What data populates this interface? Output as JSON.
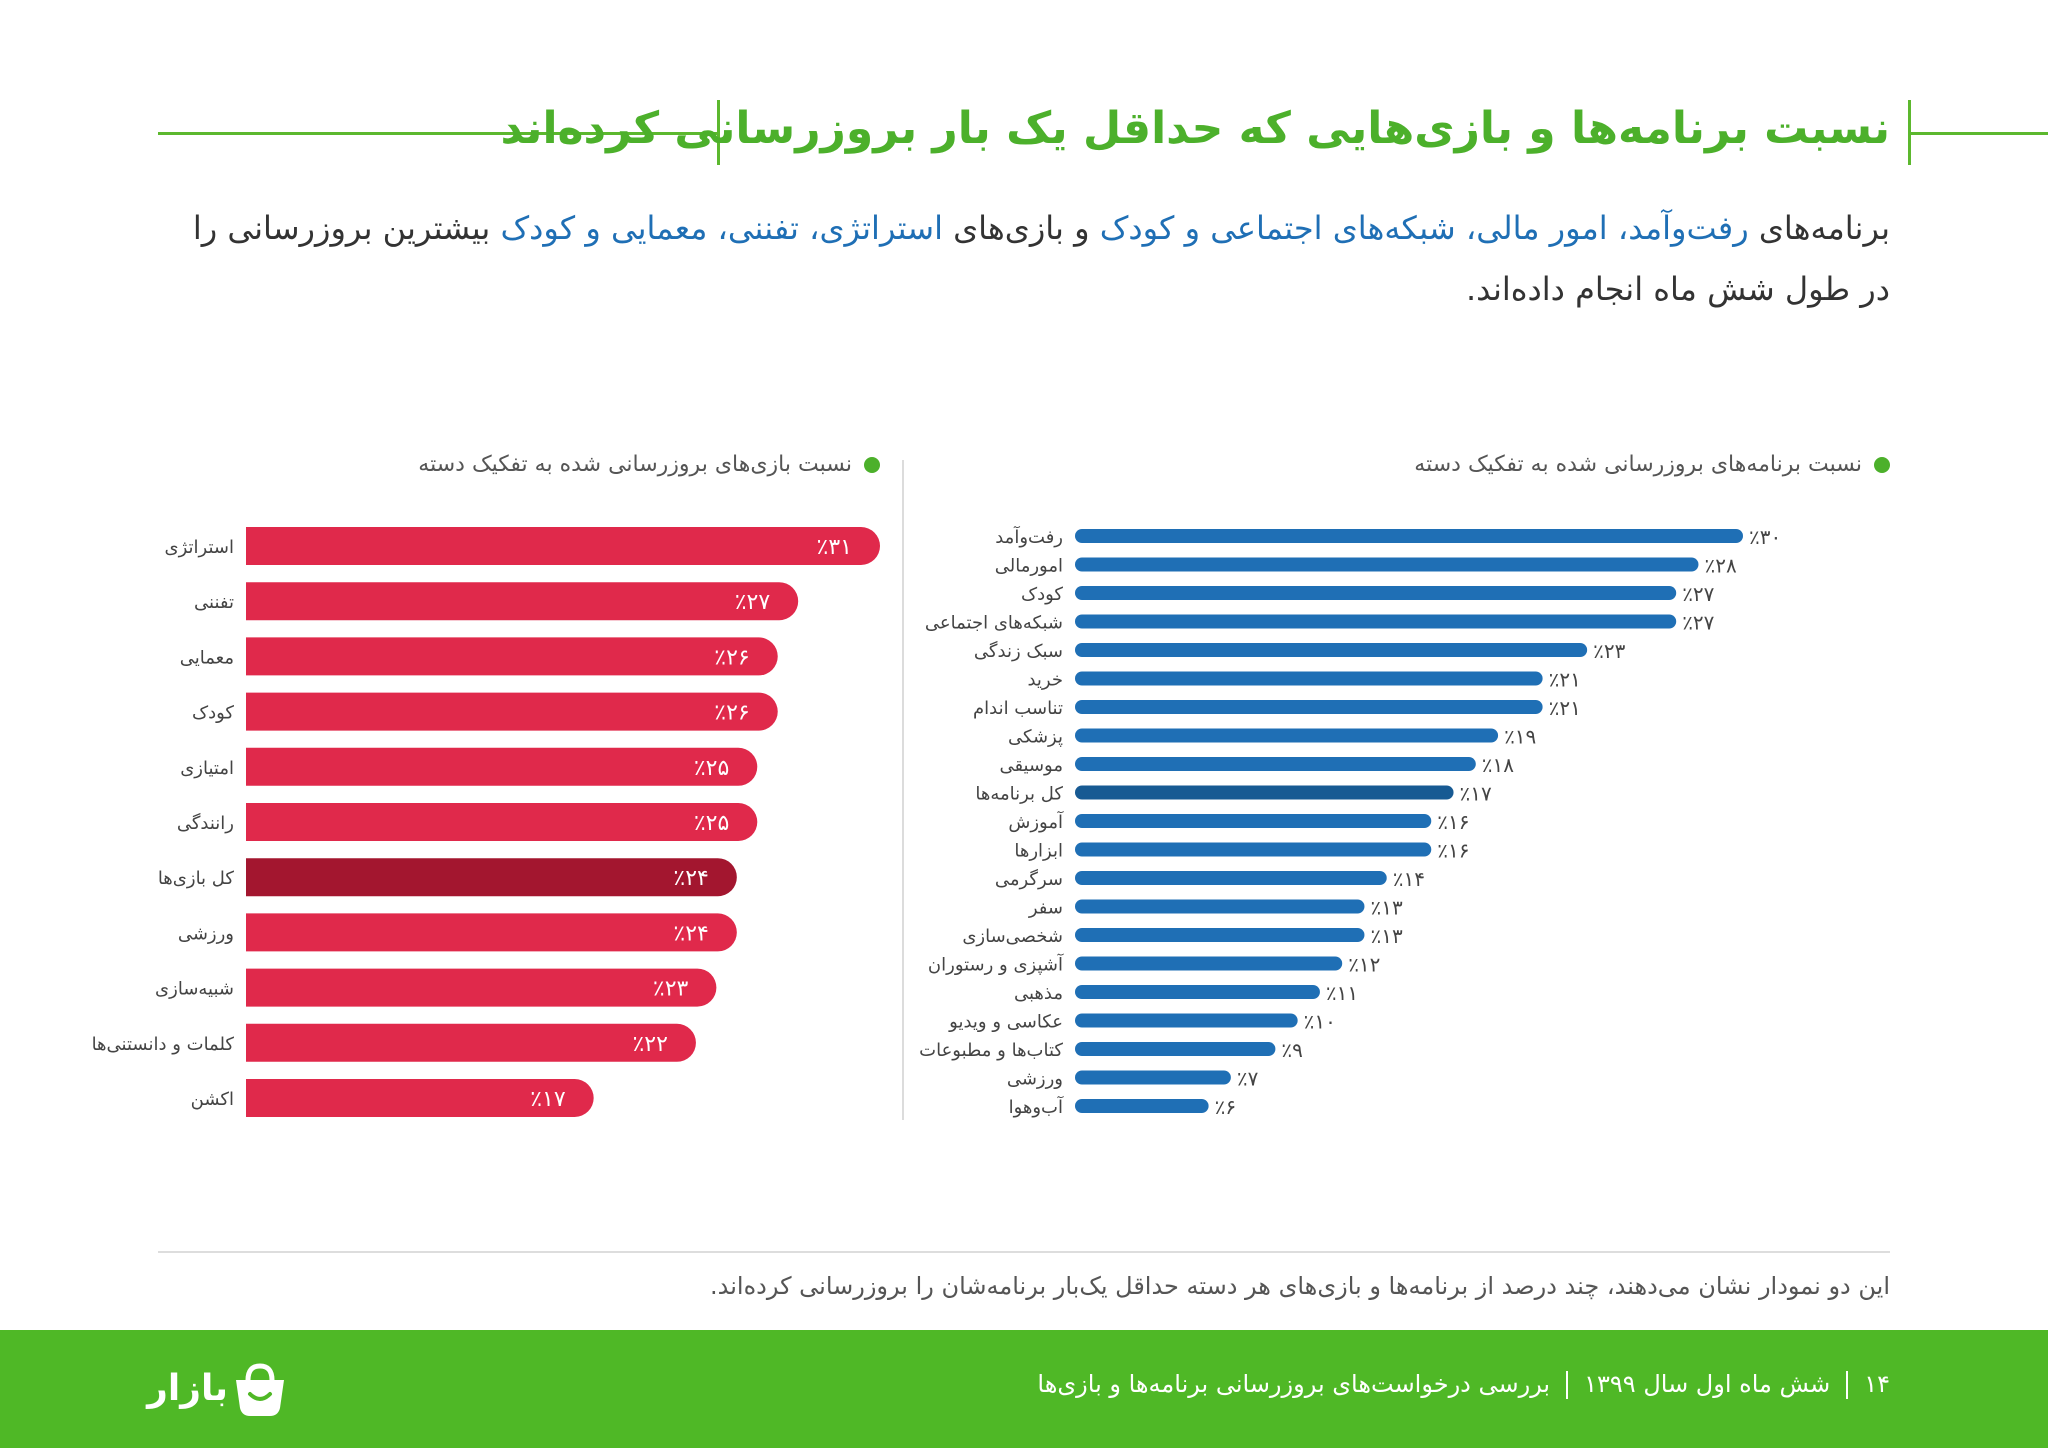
{
  "title": "نسبت برنامه‌ها و بازی‌هایی که حداقل یک بار بروزرسانی کرده‌اند",
  "intro": {
    "p1": "برنامه‌های ",
    "h1": "رفت‌وآمد، امور مالی، شبکه‌های اجتماعی و کودک",
    "p2": " و بازی‌های ",
    "h2": "استراتژی، تفننی، معمایی و کودک",
    "p3": " بیشترین بروزرسانی را در طول شش ماه انجام داده‌اند."
  },
  "colors": {
    "green": "#4cb02b",
    "app_bar": "#1f6fb5",
    "app_bar_total": "#175a93",
    "game_bar": "#e0294b",
    "game_bar_total": "#a3162f"
  },
  "chart_data": [
    {
      "type": "bar",
      "orientation": "horizontal",
      "title": "نسبت برنامه‌های بروزرسانی شده به تفکیک دسته",
      "categories": [
        "رفت‌وآمد",
        "امورمالی",
        "کودک",
        "شبکه‌های اجتماعی",
        "سبک زندگی",
        "خرید",
        "تناسب اندام",
        "پزشکی",
        "موسیقی",
        "کل برنامه‌ها",
        "آموزش",
        "ابزارها",
        "سرگرمی",
        "سفر",
        "شخصی‌سازی",
        "آشپزی و رستوران",
        "مذهبی",
        "عکاسی و ویدیو",
        "کتاب‌ها و مطبوعات",
        "ورزشی",
        "آب‌وهوا"
      ],
      "values": [
        30,
        28,
        27,
        27,
        23,
        21,
        21,
        19,
        18,
        17,
        16,
        16,
        14,
        13,
        13,
        12,
        11,
        10,
        9,
        7,
        6
      ],
      "labels": [
        "٪۳۰",
        "٪۲۸",
        "٪۲۷",
        "٪۲۷",
        "٪۲۳",
        "٪۲۱",
        "٪۲۱",
        "٪۱۹",
        "٪۱۸",
        "٪۱۷",
        "٪۱۶",
        "٪۱۶",
        "٪۱۴",
        "٪۱۳",
        "٪۱۳",
        "٪۱۲",
        "٪۱۱",
        "٪۱۰",
        "٪۹",
        "٪۷",
        "٪۶"
      ],
      "highlight": "کل برنامه‌ها",
      "xlim": [
        0,
        30
      ]
    },
    {
      "type": "bar",
      "orientation": "horizontal",
      "title": "نسبت بازی‌های بروزرسانی شده به تفکیک دسته",
      "categories": [
        "استراتژی",
        "تفننی",
        "معمایی",
        "کودک",
        "امتیازی",
        "رانندگی",
        "کل بازی‌ها",
        "ورزشی",
        "شبیه‌سازی",
        "کلمات و دانستنی‌ها",
        "اکشن"
      ],
      "values": [
        31,
        27,
        26,
        26,
        25,
        25,
        24,
        24,
        23,
        22,
        17
      ],
      "labels": [
        "٪۳۱",
        "٪۲۷",
        "٪۲۶",
        "٪۲۶",
        "٪۲۵",
        "٪۲۵",
        "٪۲۴",
        "٪۲۴",
        "٪۲۳",
        "٪۲۲",
        "٪۱۷"
      ],
      "highlight": "کل بازی‌ها",
      "xlim": [
        0,
        31
      ]
    }
  ],
  "footer_note": "این دو نمودار نشان می‌دهند، چند درصد از برنامه‌ها و بازی‌های هر دسته حداقل یک‌بار برنامه‌شان را بروزرسانی کرده‌اند.",
  "bottom": {
    "page_number": "۱۴",
    "period": "شش ماه اول سال ۱۳۹۹",
    "report_title": "بررسی درخواست‌های بروزرسانی برنامه‌ها و بازی‌ها",
    "brand": "بازار"
  }
}
